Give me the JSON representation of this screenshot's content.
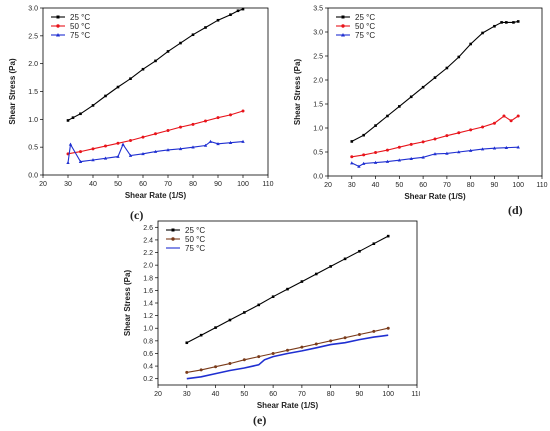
{
  "chart_data": [
    {
      "type": "scatter",
      "caption": "(c)",
      "title": "",
      "xlabel": "Shear Rate (1/S)",
      "ylabel": "Shear Stress (Pa)",
      "xlim": [
        20,
        110
      ],
      "ylim": [
        0.0,
        3.0
      ],
      "xticks": [
        "20",
        "30",
        "40",
        "50",
        "60",
        "70",
        "80",
        "90",
        "100",
        "110"
      ],
      "yticks": [
        "0.0",
        "0.5",
        "1.0",
        "1.5",
        "2.0",
        "2.5",
        "3.0"
      ],
      "legend_position": "top-left",
      "grid": false,
      "series": [
        {
          "name": "25 °C",
          "color": "#000000",
          "marker": "square",
          "x": [
            30,
            32,
            35,
            40,
            45,
            50,
            55,
            60,
            65,
            70,
            75,
            80,
            85,
            90,
            95,
            98,
            100
          ],
          "y": [
            0.98,
            1.03,
            1.1,
            1.25,
            1.42,
            1.58,
            1.73,
            1.9,
            2.05,
            2.22,
            2.37,
            2.52,
            2.65,
            2.78,
            2.88,
            2.95,
            2.98
          ]
        },
        {
          "name": "50 °C",
          "color": "#e8141b",
          "marker": "circle",
          "x": [
            30,
            35,
            40,
            45,
            50,
            55,
            60,
            65,
            70,
            75,
            80,
            85,
            90,
            95,
            100
          ],
          "y": [
            0.38,
            0.42,
            0.47,
            0.52,
            0.57,
            0.62,
            0.68,
            0.74,
            0.8,
            0.86,
            0.91,
            0.97,
            1.03,
            1.08,
            1.15
          ]
        },
        {
          "name": "75 °C",
          "color": "#1f2fd1",
          "marker": "triangle",
          "x": [
            30,
            31,
            35,
            40,
            45,
            50,
            52,
            55,
            60,
            65,
            70,
            75,
            80,
            85,
            87,
            90,
            95,
            100
          ],
          "y": [
            0.22,
            0.55,
            0.24,
            0.27,
            0.3,
            0.33,
            0.55,
            0.35,
            0.38,
            0.42,
            0.45,
            0.47,
            0.5,
            0.53,
            0.6,
            0.56,
            0.58,
            0.6
          ]
        }
      ]
    },
    {
      "type": "scatter",
      "caption": "(d)",
      "title": "",
      "xlabel": "Shear Rate (1/S)",
      "ylabel": "Shear Stress (Pa)",
      "xlim": [
        20,
        110
      ],
      "ylim": [
        0.0,
        3.5
      ],
      "xticks": [
        "20",
        "30",
        "40",
        "50",
        "60",
        "70",
        "80",
        "90",
        "100",
        "110"
      ],
      "yticks": [
        "0.0",
        "0.5",
        "1.0",
        "1.5",
        "2.0",
        "2.5",
        "3.0",
        "3.5"
      ],
      "legend_position": "top-left",
      "grid": false,
      "series": [
        {
          "name": "25 °C",
          "color": "#000000",
          "marker": "square",
          "x": [
            30,
            35,
            40,
            45,
            50,
            55,
            60,
            65,
            70,
            75,
            80,
            85,
            90,
            93,
            95,
            98,
            100
          ],
          "y": [
            0.72,
            0.85,
            1.05,
            1.25,
            1.45,
            1.65,
            1.85,
            2.05,
            2.25,
            2.48,
            2.75,
            2.98,
            3.12,
            3.2,
            3.2,
            3.2,
            3.22
          ]
        },
        {
          "name": "50 °C",
          "color": "#e8141b",
          "marker": "circle",
          "x": [
            30,
            35,
            40,
            45,
            50,
            55,
            60,
            65,
            70,
            75,
            80,
            85,
            90,
            94,
            97,
            100
          ],
          "y": [
            0.4,
            0.44,
            0.49,
            0.54,
            0.6,
            0.66,
            0.71,
            0.77,
            0.84,
            0.9,
            0.96,
            1.02,
            1.1,
            1.25,
            1.15,
            1.25
          ]
        },
        {
          "name": "75 °C",
          "color": "#1f2fd1",
          "marker": "triangle",
          "x": [
            30,
            33,
            35,
            40,
            45,
            50,
            55,
            60,
            65,
            70,
            75,
            80,
            85,
            90,
            95,
            100
          ],
          "y": [
            0.27,
            0.2,
            0.26,
            0.28,
            0.3,
            0.33,
            0.36,
            0.39,
            0.46,
            0.47,
            0.5,
            0.53,
            0.56,
            0.58,
            0.59,
            0.6
          ]
        }
      ]
    },
    {
      "type": "scatter",
      "caption": "(e)",
      "title": "",
      "xlabel": "Shear Rate (1/S)",
      "ylabel": "Shear Stress (Pa)",
      "xlim": [
        20,
        110
      ],
      "ylim": [
        0.1,
        2.7
      ],
      "xticks": [
        "20",
        "30",
        "40",
        "50",
        "60",
        "70",
        "80",
        "90",
        "100",
        "110"
      ],
      "yticks": [
        "0.2",
        "0.4",
        "0.6",
        "0.8",
        "1.0",
        "1.2",
        "1.4",
        "1.6",
        "1.8",
        "2.0",
        "2.2",
        "2.4",
        "2.6"
      ],
      "legend_position": "top-left",
      "grid": false,
      "series": [
        {
          "name": "25 °C",
          "color": "#000000",
          "marker": "square",
          "x": [
            30,
            35,
            40,
            45,
            50,
            55,
            60,
            65,
            70,
            75,
            80,
            85,
            90,
            95,
            100
          ],
          "y": [
            0.77,
            0.89,
            1.01,
            1.13,
            1.25,
            1.37,
            1.5,
            1.62,
            1.74,
            1.86,
            1.98,
            2.1,
            2.22,
            2.34,
            2.46
          ]
        },
        {
          "name": "50 °C",
          "color": "#7a3b1a",
          "marker": "circle",
          "x": [
            30,
            35,
            40,
            45,
            50,
            55,
            60,
            65,
            70,
            75,
            80,
            85,
            90,
            95,
            100
          ],
          "y": [
            0.3,
            0.34,
            0.39,
            0.44,
            0.5,
            0.55,
            0.6,
            0.65,
            0.7,
            0.75,
            0.8,
            0.85,
            0.9,
            0.95,
            1.0
          ]
        },
        {
          "name": "75 °C",
          "color": "#1f2fd1",
          "marker": "line",
          "x": [
            30,
            35,
            40,
            45,
            50,
            55,
            57,
            60,
            65,
            70,
            75,
            80,
            85,
            90,
            95,
            100
          ],
          "y": [
            0.2,
            0.23,
            0.28,
            0.33,
            0.37,
            0.42,
            0.5,
            0.55,
            0.6,
            0.64,
            0.69,
            0.74,
            0.77,
            0.82,
            0.86,
            0.89
          ]
        }
      ]
    }
  ]
}
